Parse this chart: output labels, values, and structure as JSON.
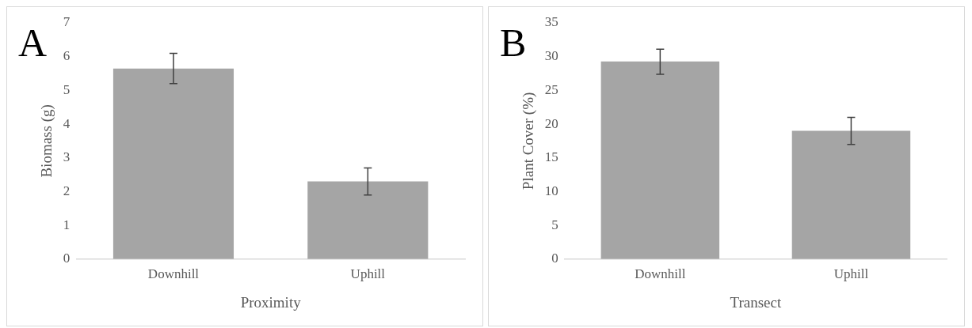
{
  "chart_data": [
    {
      "type": "bar",
      "title": "A",
      "xlabel": "Proximity",
      "ylabel": "Biomass (g)",
      "categories": [
        "Downhill",
        "Uphill"
      ],
      "values": [
        5.65,
        2.3
      ],
      "errors": [
        [
          5.2,
          6.1
        ],
        [
          1.9,
          2.7
        ]
      ],
      "color": "#a5a5a5",
      "ylim": [
        0,
        7
      ],
      "yticks": [
        0,
        1,
        2,
        3,
        4,
        5,
        6,
        7
      ],
      "grid": false,
      "legend": false
    },
    {
      "type": "bar",
      "title": "B",
      "xlabel": "Transect",
      "ylabel": "Plant Cover (%)",
      "categories": [
        "Downhill",
        "Uphill"
      ],
      "values": [
        29.3,
        19.0
      ],
      "errors": [
        [
          27.4,
          31.1
        ],
        [
          17.0,
          21.0
        ]
      ],
      "color": "#a5a5a5",
      "ylim": [
        0,
        35
      ],
      "yticks": [
        0,
        5,
        10,
        15,
        20,
        25,
        30,
        35
      ],
      "grid": false,
      "legend": false
    }
  ]
}
